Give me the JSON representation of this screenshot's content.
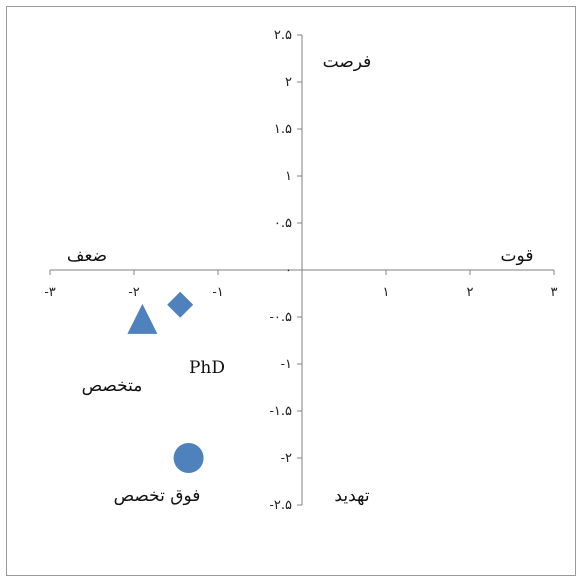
{
  "chart_data": {
    "type": "scatter",
    "title": "",
    "xlabel": "",
    "ylabel": "",
    "xlim": [
      -3,
      3
    ],
    "ylim": [
      -2.5,
      2.5
    ],
    "x_ticks": [
      {
        "value": -3,
        "label": "-۳"
      },
      {
        "value": -2,
        "label": "-۲"
      },
      {
        "value": -1,
        "label": "-۱"
      },
      {
        "value": 0,
        "label": "۰"
      },
      {
        "value": 1,
        "label": "۱"
      },
      {
        "value": 2,
        "label": "۲"
      },
      {
        "value": 3,
        "label": "۳"
      }
    ],
    "y_ticks": [
      {
        "value": 2.5,
        "label": "۲.۵"
      },
      {
        "value": 2,
        "label": "۲"
      },
      {
        "value": 1.5,
        "label": "۱.۵"
      },
      {
        "value": 1,
        "label": "۱"
      },
      {
        "value": 0.5,
        "label": "۰.۵"
      },
      {
        "value": 0,
        "label": "۰"
      },
      {
        "value": -0.5,
        "label": "-۰.۵"
      },
      {
        "value": -1,
        "label": "-۱"
      },
      {
        "value": -1.5,
        "label": "-۱.۵"
      },
      {
        "value": -2,
        "label": "-۲"
      },
      {
        "value": -2.5,
        "label": "-۲.۵"
      }
    ],
    "grid": false,
    "marker_color": "#4f81bd",
    "points": [
      {
        "name": "PhD",
        "x": -1.45,
        "y": -0.37,
        "marker": "diamond"
      },
      {
        "name": "متخصص",
        "x": -1.9,
        "y": -0.52,
        "marker": "triangle"
      },
      {
        "name": "فوق تخصص",
        "x": -1.35,
        "y": -2.0,
        "marker": "circle"
      }
    ],
    "quadrant_labels": {
      "opportunity": "فرصت",
      "threat": "تهدید",
      "strength": "قوت",
      "weakness": "ضعف"
    }
  }
}
